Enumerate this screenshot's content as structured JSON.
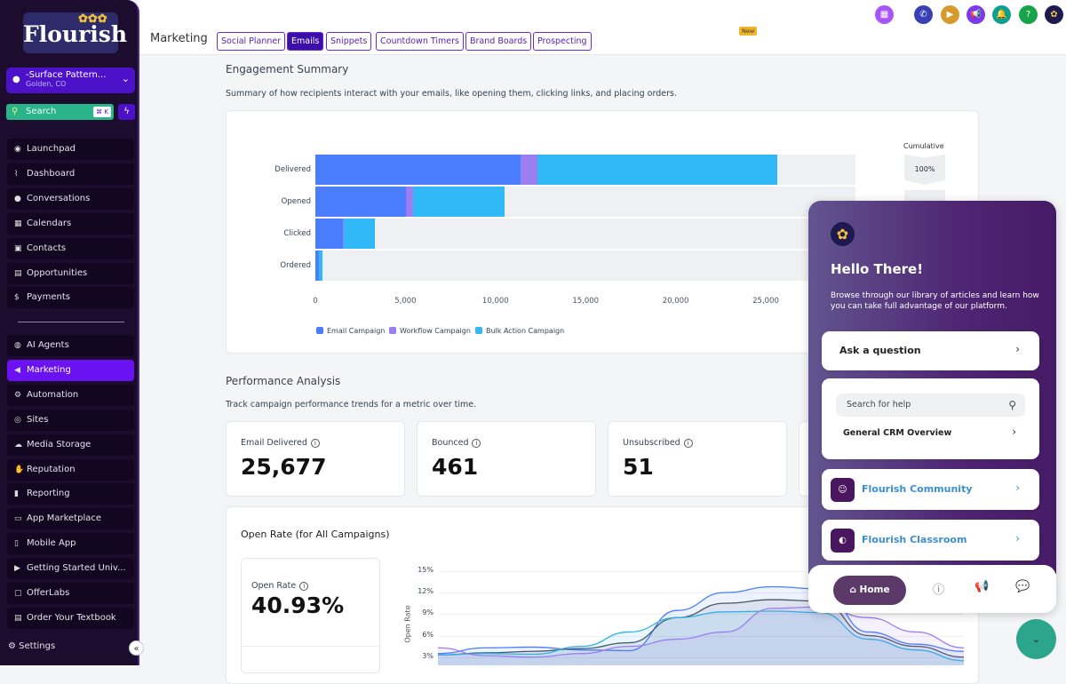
{
  "sidebar": {
    "logo": "Flourish",
    "location": {
      "name": "-Surface Pattern...",
      "city": "Golden, CO"
    },
    "search": {
      "label": "Search",
      "shortcut": "⌘ K"
    },
    "items_top": [
      {
        "label": "Launchpad",
        "icon": "◉"
      },
      {
        "label": "Dashboard",
        "icon": "⌇"
      },
      {
        "label": "Conversations",
        "icon": "●"
      },
      {
        "label": "Calendars",
        "icon": "▦"
      },
      {
        "label": "Contacts",
        "icon": "▣"
      },
      {
        "label": "Opportunities",
        "icon": "▤"
      },
      {
        "label": "Payments",
        "icon": "$"
      }
    ],
    "items_bottom": [
      {
        "label": "AI Agents",
        "icon": "◍"
      },
      {
        "label": "Marketing",
        "icon": "◀",
        "active": true
      },
      {
        "label": "Automation",
        "icon": "⚙"
      },
      {
        "label": "Sites",
        "icon": "◎"
      },
      {
        "label": "Media Storage",
        "icon": "☁"
      },
      {
        "label": "Reputation",
        "icon": "✋"
      },
      {
        "label": "Reporting",
        "icon": "▮"
      },
      {
        "label": "App Marketplace",
        "icon": "▭"
      },
      {
        "label": "Mobile App",
        "icon": "▯"
      },
      {
        "label": "Getting Started Univ...",
        "icon": "▶"
      },
      {
        "label": "OfferLabs",
        "icon": "▢"
      },
      {
        "label": "Order Your Textbook",
        "icon": "▤"
      }
    ],
    "settings": "Settings"
  },
  "header": {
    "title": "Marketing",
    "tabs": [
      {
        "label": "Social Planner"
      },
      {
        "label": "Emails",
        "active": true
      },
      {
        "label": "Snippets"
      },
      {
        "label": "Countdown Timers"
      },
      {
        "label": "Brand Boards"
      },
      {
        "label": "Prospecting",
        "badge": "New"
      }
    ],
    "icons": [
      {
        "name": "apps",
        "color": "#a855f7"
      },
      {
        "name": "phone",
        "color": "#3b3fb6"
      },
      {
        "name": "video",
        "color": "#d69a2d"
      },
      {
        "name": "megaphone",
        "color": "#7c3aed"
      },
      {
        "name": "bell",
        "color": "#0f9f8f"
      },
      {
        "name": "help",
        "color": "#16a34a"
      },
      {
        "name": "avatar",
        "color": "#1e1a4f"
      }
    ]
  },
  "engagement": {
    "title": "Engagement Summary",
    "subtitle": "Summary of how recipients interact with your emails, like opening them, clicking links, and placing orders.",
    "cumulative_label": "Cumulative",
    "cumulative_values": [
      "100%"
    ]
  },
  "chart_data": [
    {
      "type": "bar",
      "orientation": "horizontal",
      "stacked": true,
      "categories": [
        "Delivered",
        "Opened",
        "Clicked",
        "Ordered"
      ],
      "series": [
        {
          "name": "Email Campaign",
          "color": "#4a7dff",
          "values": [
            11400,
            5050,
            1550,
            200
          ]
        },
        {
          "name": "Workflow Campaign",
          "color": "#9b7ff0",
          "values": [
            950,
            380,
            50,
            20
          ]
        },
        {
          "name": "Bulk Action Campaign",
          "color": "#31b8f7",
          "values": [
            13300,
            5080,
            1680,
            190
          ]
        }
      ],
      "xticks": [
        "0",
        "5,000",
        "10,000",
        "15,000",
        "20,000",
        "25,000"
      ],
      "xlim": [
        0,
        30000
      ],
      "legend": "bottom-left"
    },
    {
      "type": "line",
      "title": "Open Rate (for All Campaigns)",
      "ylabel": "Open Rate",
      "yticks": [
        "15%",
        "12%",
        "9%",
        "6%",
        "3%"
      ],
      "ylim": [
        0,
        15
      ],
      "series": [
        {
          "color": "#4a7dff",
          "values": [
            3.5,
            4.3,
            4.4,
            4.0,
            3.9,
            9.5,
            12.0,
            12.8,
            12.5,
            6.5,
            4.8,
            3.8
          ]
        },
        {
          "color": "#4b5563",
          "values": [
            3.3,
            3.6,
            3.8,
            4.2,
            5.0,
            8.5,
            10.5,
            11.0,
            10.8,
            6.0,
            4.5,
            3.0
          ]
        },
        {
          "color": "#2fb0e8",
          "values": [
            3.3,
            3.5,
            3.4,
            4.5,
            6.5,
            8.5,
            9.3,
            9.4,
            9.2,
            5.5,
            4.0,
            2.5
          ]
        },
        {
          "color": "#9b7ff0",
          "values": [
            4.3,
            3.2,
            3.0,
            3.5,
            4.5,
            5.5,
            6.5,
            9.8,
            10.0,
            8.5,
            6.5,
            4.3
          ]
        }
      ]
    }
  ],
  "performance": {
    "title": "Performance Analysis",
    "subtitle": "Track campaign performance trends for a metric over time.",
    "stats": [
      {
        "label": "Email Delivered",
        "value": "25,677"
      },
      {
        "label": "Bounced",
        "value": "461"
      },
      {
        "label": "Unsubscribed",
        "value": "51"
      }
    ],
    "open_rate": {
      "label": "Open Rate",
      "value": "40.93%"
    }
  },
  "help_panel": {
    "greeting": "Hello There!",
    "description": "Browse through our library of articles and learn how you can take full advantage of our platform.",
    "ask": "Ask a question",
    "search_placeholder": "Search for help",
    "article": "General CRM Overview",
    "links": [
      {
        "label": "Flourish Community"
      },
      {
        "label": "Flourish Classroom"
      }
    ],
    "footer": {
      "home": "Home"
    }
  }
}
